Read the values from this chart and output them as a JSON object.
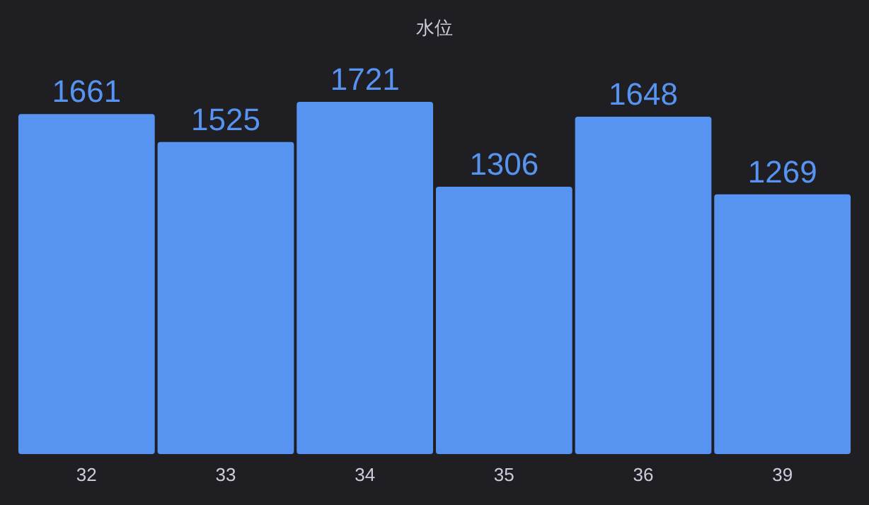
{
  "chart_data": {
    "type": "bar",
    "title": "水位",
    "categories": [
      "32",
      "33",
      "34",
      "35",
      "36",
      "39"
    ],
    "values": [
      1661,
      1525,
      1721,
      1306,
      1648,
      1269
    ],
    "color": "#5794f2",
    "data_labels": true
  }
}
